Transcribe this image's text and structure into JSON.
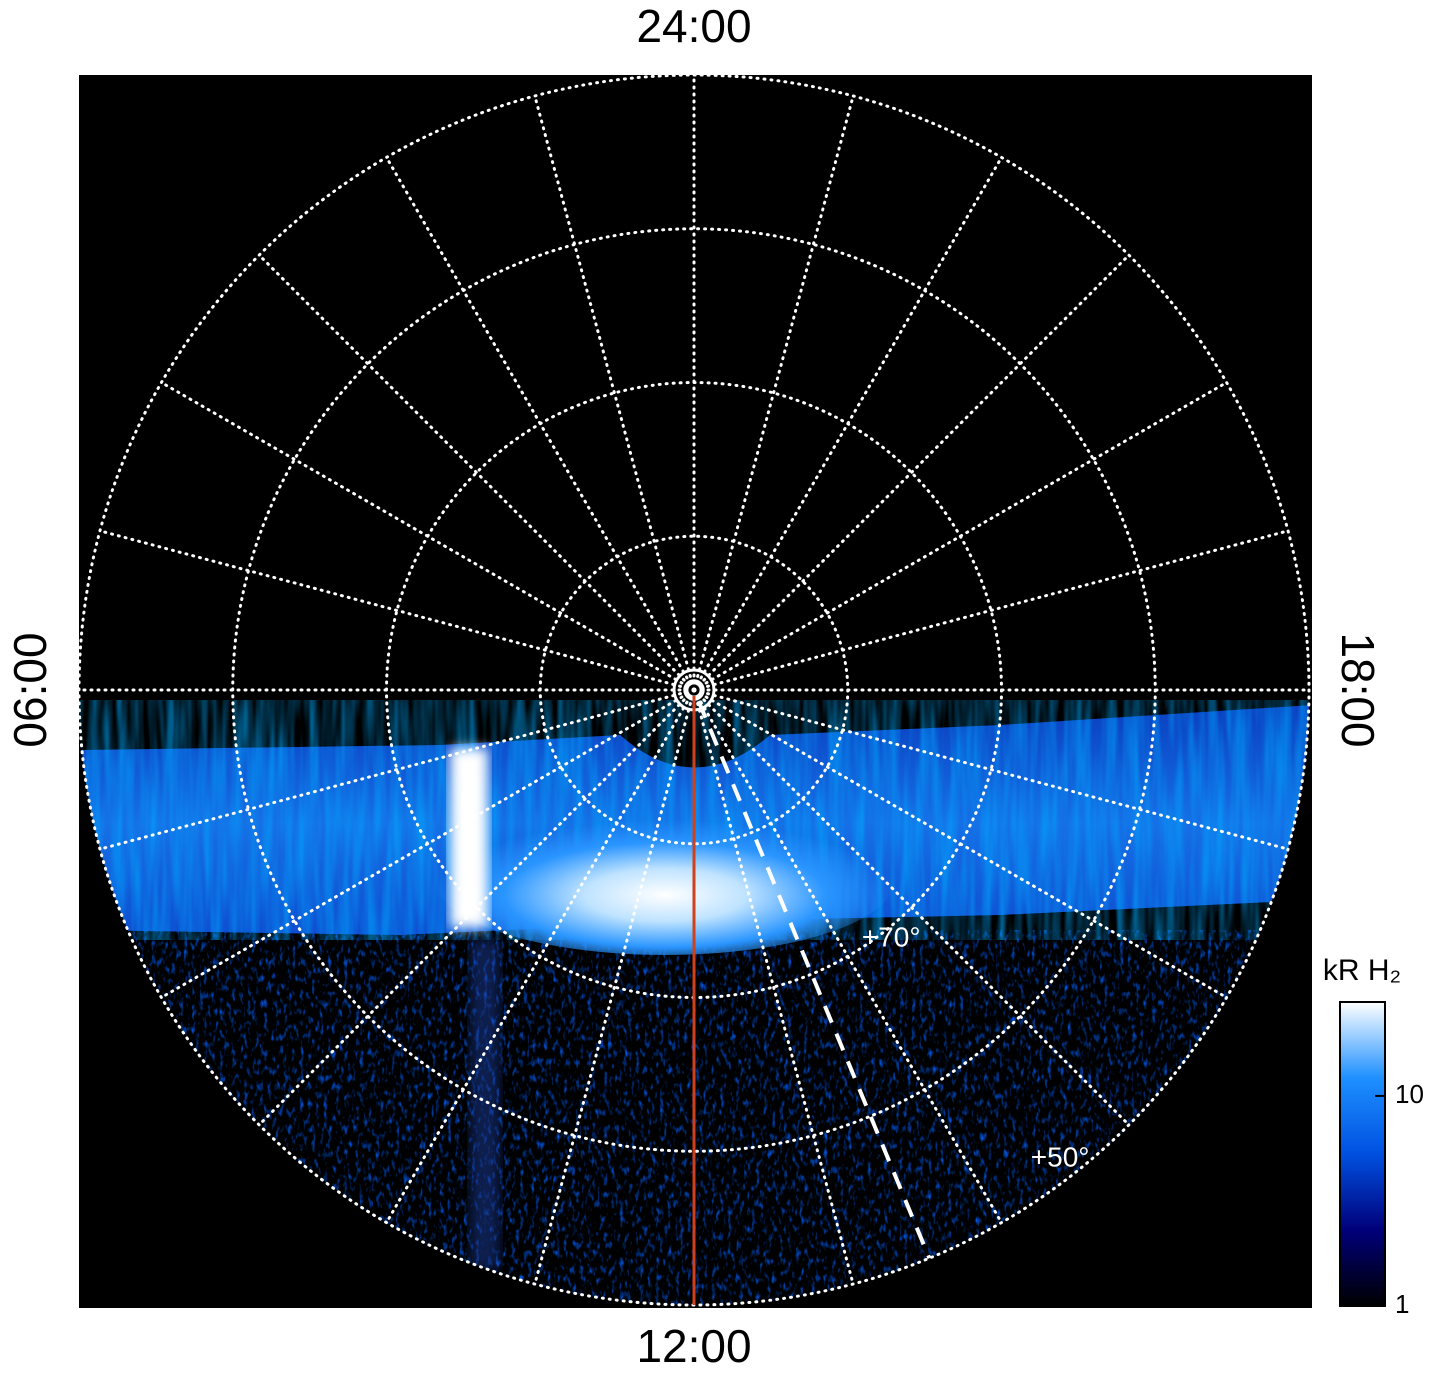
{
  "chart_data": {
    "type": "polar",
    "rlim": [
      90,
      50
    ],
    "xlim": [
      0,
      24
    ],
    "xticks": [
      {
        "value": 0,
        "label": "24:00"
      },
      {
        "value": 6,
        "label": "06:00"
      },
      {
        "value": 12,
        "label": "12:00"
      },
      {
        "value": 18,
        "label": "18:00"
      }
    ],
    "meridians": [
      0,
      1,
      2,
      3,
      4,
      5,
      6,
      7,
      8,
      9,
      10,
      11,
      12,
      13,
      14,
      15,
      16,
      17,
      18,
      19,
      20,
      21,
      22,
      23
    ],
    "lat_circles": [
      89.4,
      88.7,
      80,
      70,
      60,
      50
    ],
    "lat_labels": [
      {
        "value": 70,
        "label": "+70°"
      },
      {
        "value": 50,
        "label": "+50°"
      }
    ],
    "red_meridian": 12,
    "red_color": "#d0401a",
    "dashed_meridian": 13.5,
    "colorbar": {
      "label": "kR H₂",
      "ylim": [
        1,
        28
      ],
      "log": true,
      "yticks": [
        1,
        10
      ],
      "colormap": [
        "#000000",
        "#00007a",
        "#0050e0",
        "#1e90ff",
        "#ffffff"
      ]
    }
  }
}
